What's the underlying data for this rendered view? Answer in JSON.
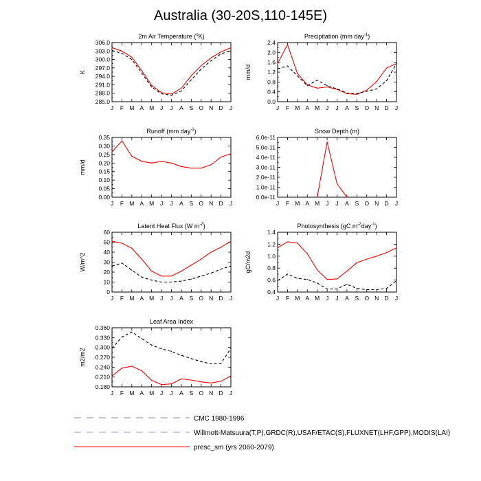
{
  "page": {
    "title": "Australia (30-20S,110-145E)"
  },
  "months": [
    "J",
    "F",
    "M",
    "A",
    "M",
    "J",
    "J",
    "A",
    "S",
    "O",
    "N",
    "D",
    "J"
  ],
  "colors": {
    "red": "#ff0000",
    "black": "#000000",
    "purple": "#9b9bd8",
    "gray": "#888888"
  },
  "legend": [
    {
      "label": "CMC 1980-1996",
      "style": "dashed",
      "color": "#888888"
    },
    {
      "label": "Willmott-Matsuura(T,P),GRDC(R),USAF/ETAC(S),FLUXNET(LHF,GPP),MODIS(LAI)",
      "style": "dashed",
      "color": "#9b9bd8"
    },
    {
      "label": "presc_sm (yrs 2060-2079)",
      "style": "solid",
      "color": "#ff0000"
    }
  ],
  "chart_data": [
    {
      "type": "line",
      "title_text": "2m Air Temperature (°K)",
      "title_parts": [
        "2m Air Temperature (",
        "o",
        "K)"
      ],
      "ylabel": "K",
      "ylim": [
        285.0,
        306.0
      ],
      "yticks": [
        "285.0",
        "288.0",
        "291.0",
        "294.0",
        "297.0",
        "300.0",
        "303.0",
        "306.0"
      ],
      "series": [
        {
          "values": [
            304.2,
            303.0,
            300.8,
            296.0,
            290.8,
            288.2,
            287.7,
            289.8,
            294.2,
            297.8,
            300.6,
            302.7,
            304.2
          ]
        },
        {
          "values": [
            303.2,
            302.2,
            300.0,
            295.2,
            290.2,
            287.8,
            287.3,
            288.8,
            292.8,
            296.6,
            299.6,
            302.0,
            303.2
          ]
        }
      ]
    },
    {
      "type": "line",
      "title_text": "Precipitation (mm day-1)",
      "title_parts": [
        "Precipitation (mm day",
        "-1",
        ")"
      ],
      "ylabel": "mm/d",
      "ylim": [
        0.0,
        2.4
      ],
      "yticks": [
        "0.0",
        "0.4",
        "0.8",
        "1.2",
        "1.6",
        "2.0",
        "2.4"
      ],
      "series": [
        {
          "values": [
            1.55,
            2.32,
            1.15,
            0.68,
            0.55,
            0.6,
            0.5,
            0.33,
            0.3,
            0.47,
            0.82,
            1.37,
            1.55
          ]
        },
        {
          "values": [
            1.33,
            1.45,
            1.05,
            0.65,
            0.88,
            0.65,
            0.52,
            0.35,
            0.33,
            0.42,
            0.52,
            0.85,
            1.55
          ]
        }
      ]
    },
    {
      "type": "line",
      "title_text": "Runoff (mm day-1)",
      "title_parts": [
        "Runoff (mm day",
        "-1",
        ")"
      ],
      "ylabel": "mm/d",
      "ylim": [
        0.0,
        0.35
      ],
      "yticks": [
        "0.00",
        "0.05",
        "0.10",
        "0.15",
        "0.20",
        "0.25",
        "0.30",
        "0.35"
      ],
      "series": [
        {
          "values": [
            0.265,
            0.33,
            0.24,
            0.21,
            0.2,
            0.21,
            0.2,
            0.18,
            0.17,
            0.17,
            0.19,
            0.235,
            0.255
          ]
        }
      ]
    },
    {
      "type": "line",
      "title_text": "Snow Depth (m)",
      "title_parts": [
        "Snow Depth (m)"
      ],
      "ylabel": "",
      "ylim": [
        0.0,
        6e-11
      ],
      "yticks": [
        "0.0e-11",
        "1.0e-11",
        "2.0e-11",
        "3.0e-11",
        "4.0e-11",
        "5.0e-11",
        "6.0e-11"
      ],
      "series": [
        {
          "values": [
            null,
            null,
            null,
            null,
            0.0,
            5.55e-11,
            1.35e-11,
            0.0,
            null,
            null,
            null,
            null,
            null
          ]
        }
      ]
    },
    {
      "type": "line",
      "title_text": "Latent Heat Flux (W m-2)",
      "title_parts": [
        "Latent Heat Flux (W m",
        "-2",
        ")"
      ],
      "ylabel": "W/m^2",
      "ylim": [
        0,
        60
      ],
      "yticks": [
        "0",
        "10",
        "20",
        "30",
        "40",
        "50",
        "60"
      ],
      "series": [
        {
          "values": [
            51,
            49,
            44,
            33,
            21,
            16,
            16,
            21,
            27,
            33,
            40,
            45,
            51
          ]
        },
        {
          "values": [
            26,
            29,
            22,
            15,
            12,
            10,
            10,
            11,
            13,
            16,
            19,
            23,
            26
          ]
        }
      ]
    },
    {
      "type": "line",
      "title_text": "Photosynthesis (gC m-2day-1)",
      "title_parts": [
        "Photosynthesis (gC m",
        "-2",
        "day",
        "-1",
        ")"
      ],
      "ylabel": "gC/m2d",
      "ylim": [
        0.4,
        1.4
      ],
      "yticks": [
        "0.4",
        "0.6",
        "0.8",
        "1.0",
        "1.2",
        "1.4"
      ],
      "series": [
        {
          "values": [
            1.14,
            1.24,
            1.22,
            1.04,
            0.77,
            0.61,
            0.62,
            0.75,
            0.89,
            0.95,
            1.0,
            1.06,
            1.14
          ]
        },
        {
          "values": [
            0.59,
            0.7,
            0.63,
            0.61,
            0.55,
            0.45,
            0.45,
            0.53,
            0.46,
            0.44,
            0.44,
            0.46,
            0.59
          ]
        }
      ]
    },
    {
      "type": "line",
      "title_text": "Leaf Area Index",
      "title_parts": [
        "Leaf Area Index"
      ],
      "ylabel": "m2/m2",
      "ylim": [
        0.18,
        0.36
      ],
      "yticks": [
        "0.180",
        "0.210",
        "0.240",
        "0.270",
        "0.300",
        "0.330",
        "0.360"
      ],
      "series": [
        {
          "values": [
            0.213,
            0.237,
            0.243,
            0.229,
            0.2,
            0.187,
            0.189,
            0.204,
            0.201,
            0.195,
            0.192,
            0.197,
            0.213
          ]
        },
        {
          "values": [
            0.297,
            0.332,
            0.347,
            0.327,
            0.307,
            0.296,
            0.288,
            0.276,
            0.266,
            0.257,
            0.25,
            0.252,
            0.297
          ]
        }
      ]
    }
  ]
}
